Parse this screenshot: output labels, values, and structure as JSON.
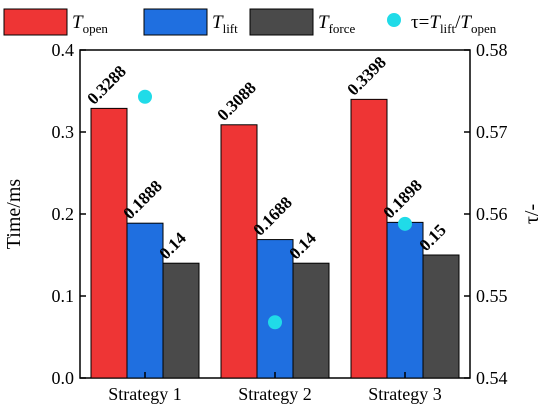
{
  "chart_data": {
    "type": "bar",
    "categories": [
      "Strategy 1",
      "Strategy 2",
      "Strategy 3"
    ],
    "series": [
      {
        "name_main": "T",
        "name_sub": "open",
        "color": "#ee3535",
        "values": [
          0.3288,
          0.3088,
          0.3398
        ],
        "labels": [
          "0.3288",
          "0.3088",
          "0.3398"
        ]
      },
      {
        "name_main": "T",
        "name_sub": "lift",
        "color": "#1f6fe0",
        "values": [
          0.1888,
          0.1688,
          0.1898
        ],
        "labels": [
          "0.1888",
          "0.1688",
          "0.1898"
        ]
      },
      {
        "name_main": "T",
        "name_sub": "force",
        "color": "#4a4a4a",
        "values": [
          0.14,
          0.14,
          0.15
        ],
        "labels": [
          "0.14",
          "0.14",
          "0.15"
        ]
      }
    ],
    "secondary_series": {
      "type": "scatter",
      "color": "#20dbe8",
      "values": [
        0.5743,
        0.5468,
        0.5588
      ],
      "legend_parts": [
        "τ=",
        "T",
        "lift",
        "/",
        "T",
        "open"
      ]
    },
    "ylabel": "Time/ms",
    "ylim": [
      0,
      0.4
    ],
    "yticks": [
      "0.0",
      "0.1",
      "0.2",
      "0.3",
      "0.4"
    ],
    "ylabel_right": "τ/-",
    "ylim_right": [
      0.54,
      0.58
    ],
    "yticks_right": [
      "0.54",
      "0.55",
      "0.56",
      "0.57",
      "0.58"
    ],
    "legend_placement": "top",
    "grid": false
  }
}
